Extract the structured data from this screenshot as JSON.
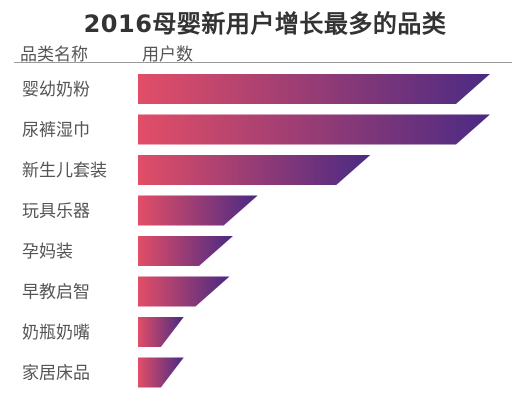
{
  "chart_data": {
    "type": "bar",
    "orientation": "horizontal",
    "title": "2016母婴新用户增长最多的品类",
    "category_header": "品类名称",
    "value_header": "用户数",
    "categories": [
      "婴幼奶粉",
      "尿裤湿巾",
      "新生儿套装",
      "玩具乐器",
      "孕妈装",
      "早教启智",
      "奶瓶奶嘴",
      "家居床品"
    ],
    "values": [
      100,
      100,
      66,
      34,
      27,
      26,
      13,
      13
    ],
    "unit": "relative length (longest bar = 100)",
    "grid": false,
    "legend": "none",
    "colors": {
      "bar_start": "#e24e67",
      "bar_end": "#4a2a83"
    }
  }
}
